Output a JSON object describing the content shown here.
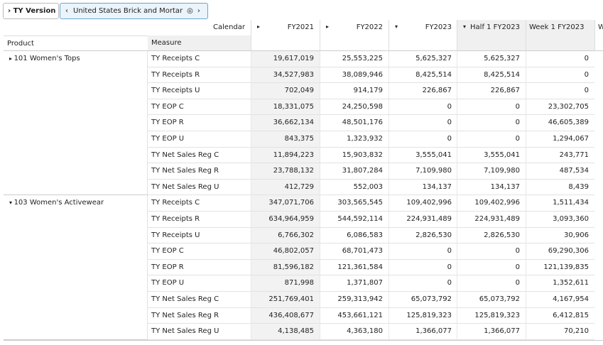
{
  "toolbar": {
    "label": "TY Version",
    "selection": "United States Brick and Mortar"
  },
  "header": {
    "calendar": "Calendar",
    "product": "Product",
    "measure": "Measure",
    "columns": [
      "FY2021",
      "FY2022",
      "FY2023",
      "Half 1 FY2023",
      "Week 1 FY2023",
      "W"
    ]
  },
  "groups": [
    {
      "product": "101 Women's Tops",
      "rows": [
        {
          "measure": "TY Receipts C",
          "values": [
            "19,617,019",
            "25,553,225",
            "5,625,327",
            "5,625,327",
            "0"
          ]
        },
        {
          "measure": "TY Receipts R",
          "values": [
            "34,527,983",
            "38,089,946",
            "8,425,514",
            "8,425,514",
            "0"
          ]
        },
        {
          "measure": "TY Receipts U",
          "values": [
            "702,049",
            "914,179",
            "226,867",
            "226,867",
            "0"
          ]
        },
        {
          "measure": "TY EOP C",
          "values": [
            "18,331,075",
            "24,250,598",
            "0",
            "0",
            "23,302,705"
          ]
        },
        {
          "measure": "TY EOP R",
          "values": [
            "36,662,134",
            "48,501,176",
            "0",
            "0",
            "46,605,389"
          ]
        },
        {
          "measure": "TY EOP U",
          "values": [
            "843,375",
            "1,323,932",
            "0",
            "0",
            "1,294,067"
          ]
        },
        {
          "measure": "TY Net Sales Reg C",
          "values": [
            "11,894,223",
            "15,903,832",
            "3,555,041",
            "3,555,041",
            "243,771"
          ]
        },
        {
          "measure": "TY Net Sales Reg R",
          "values": [
            "23,788,132",
            "31,807,284",
            "7,109,980",
            "7,109,980",
            "487,534"
          ]
        },
        {
          "measure": "TY Net Sales Reg U",
          "values": [
            "412,729",
            "552,003",
            "134,137",
            "134,137",
            "8,439"
          ]
        }
      ]
    },
    {
      "product": "103 Women's Activewear",
      "rows": [
        {
          "measure": "TY Receipts C",
          "values": [
            "347,071,706",
            "303,565,545",
            "109,402,996",
            "109,402,996",
            "1,511,434"
          ]
        },
        {
          "measure": "TY Receipts R",
          "values": [
            "634,964,959",
            "544,592,114",
            "224,931,489",
            "224,931,489",
            "3,093,360"
          ]
        },
        {
          "measure": "TY Receipts U",
          "values": [
            "6,766,302",
            "6,086,583",
            "2,826,530",
            "2,826,530",
            "30,906"
          ]
        },
        {
          "measure": "TY EOP C",
          "values": [
            "46,802,057",
            "68,701,473",
            "0",
            "0",
            "69,290,306"
          ]
        },
        {
          "measure": "TY EOP R",
          "values": [
            "81,596,182",
            "121,361,584",
            "0",
            "0",
            "121,139,835"
          ]
        },
        {
          "measure": "TY EOP U",
          "values": [
            "871,998",
            "1,371,807",
            "0",
            "0",
            "1,352,611"
          ]
        },
        {
          "measure": "TY Net Sales Reg C",
          "values": [
            "251,769,401",
            "259,313,942",
            "65,073,792",
            "65,073,792",
            "4,167,954"
          ]
        },
        {
          "measure": "TY Net Sales Reg R",
          "values": [
            "436,408,677",
            "453,661,121",
            "125,819,323",
            "125,819,323",
            "6,412,815"
          ]
        },
        {
          "measure": "TY Net Sales Reg U",
          "values": [
            "4,138,485",
            "4,363,180",
            "1,366,077",
            "1,366,077",
            "70,210"
          ]
        }
      ]
    }
  ]
}
